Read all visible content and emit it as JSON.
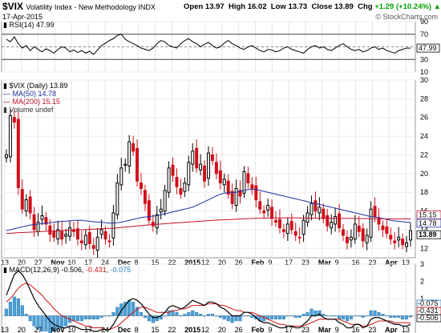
{
  "header": {
    "symbol": "$VIX",
    "description": "Volatility Index - New Methodology  INDX",
    "date": "17-Apr-2015",
    "open_label": "Open",
    "open": "13.97",
    "high_label": "High",
    "high": "16.02",
    "low_label": "Low",
    "low": "13.73",
    "close_label": "Close",
    "close": "13.89",
    "chg_label": "Chg",
    "chg": "+1.29 (+10.24%)",
    "chg_arrow": "▲",
    "brand": "© StockCharts.com"
  },
  "chart_data": [
    {
      "type": "line",
      "panel": "rsi",
      "legend": "RSI(14) 47.99",
      "last_value_label": "47.99",
      "ylim": [
        10,
        90
      ],
      "yticks": [
        10,
        30,
        50,
        70,
        90
      ],
      "guides": [
        30,
        70
      ],
      "series": [
        {
          "name": "RSI(14)",
          "values": [
            62,
            58,
            66,
            55,
            48,
            52,
            44,
            50,
            46,
            42,
            47,
            44,
            40,
            46,
            50,
            48,
            42,
            45,
            41,
            44,
            40,
            43,
            38,
            45,
            52,
            56,
            60,
            63,
            68,
            70,
            62,
            58,
            55,
            52,
            48,
            46,
            44,
            48,
            55,
            60,
            58,
            52,
            50,
            48,
            55,
            60,
            63,
            58,
            55,
            50,
            54,
            57,
            52,
            48,
            50,
            56,
            60,
            55,
            52,
            48,
            46,
            50,
            52,
            48,
            44,
            42,
            46,
            45,
            42,
            44,
            48,
            50,
            46,
            44,
            42,
            40,
            46,
            50,
            52,
            48,
            50,
            46,
            44,
            48,
            52,
            55,
            50,
            46,
            44,
            46,
            42,
            44,
            48,
            50,
            46,
            48,
            44,
            42,
            40,
            44,
            46,
            48,
            47.99
          ]
        }
      ]
    },
    {
      "type": "candlestick",
      "panel": "price",
      "legend_title": "$VIX (Daily) 13.89",
      "legend_ma50": "MA(50) 14.78",
      "legend_ma200": "MA(200) 15.15",
      "legend_volume": "Volume undef",
      "ylim": [
        11,
        30
      ],
      "yticks": [
        12,
        14,
        16,
        18,
        20,
        22,
        24,
        26,
        28,
        30
      ],
      "x_labels": [
        "13",
        "20",
        "27",
        "Nov",
        "10",
        "17",
        "24",
        "Dec",
        "8",
        "15",
        "22",
        "2015",
        "12",
        "20",
        "26",
        "Feb",
        "9",
        "17",
        "23",
        "Mar",
        "9",
        "16",
        "23",
        "Apr",
        "13"
      ],
      "x_labels_bold": [
        "Nov",
        "Dec",
        "2015",
        "Feb",
        "Mar",
        "Apr"
      ],
      "last_labels": [
        "15.15",
        "14.78",
        "13.89"
      ],
      "close": [
        22.0,
        26.2,
        25.5,
        18.5,
        16.2,
        17.2,
        15.8,
        14.0,
        14.8,
        15.5,
        14.6,
        13.5,
        13.2,
        14.0,
        13.0,
        13.5,
        14.2,
        13.8,
        13.0,
        12.6,
        13.4,
        12.5,
        12.0,
        13.2,
        14.0,
        13.0,
        12.8,
        15.8,
        19.0,
        20.6,
        21.0,
        23.4,
        22.4,
        19.2,
        18.4,
        16.8,
        15.0,
        14.4,
        15.6,
        16.2,
        18.2,
        20.6,
        19.8,
        18.6,
        17.8,
        19.0,
        21.2,
        22.4,
        20.6,
        21.0,
        19.2,
        22.2,
        21.4,
        20.0,
        19.0,
        19.4,
        17.8,
        16.8,
        18.4,
        17.6,
        20.2,
        19.0,
        18.4,
        17.2,
        16.2,
        15.8,
        16.6,
        15.2,
        14.8,
        14.2,
        13.8,
        14.6,
        14.0,
        13.4,
        13.2,
        15.0,
        15.8,
        16.8,
        16.0,
        16.4,
        15.2,
        14.4,
        14.8,
        15.4,
        14.2,
        13.4,
        12.6,
        13.2,
        14.6,
        13.8,
        12.8,
        13.4,
        16.2,
        15.4,
        14.6,
        14.0,
        13.6,
        13.0,
        12.6,
        13.2,
        12.4,
        12.6,
        13.89
      ],
      "series": [
        {
          "name": "MA(50)",
          "color": "#1f2fa0",
          "values": [
            13.9,
            14.0,
            14.1,
            14.2,
            14.3,
            14.4,
            14.5,
            14.55,
            14.6,
            14.65,
            14.7,
            14.75,
            14.8,
            14.85,
            14.9,
            14.9,
            14.95,
            15.0,
            15.0,
            15.0,
            14.95,
            14.9,
            14.85,
            14.8,
            14.8,
            14.75,
            14.7,
            14.7,
            14.75,
            14.8,
            14.9,
            15.0,
            15.1,
            15.2,
            15.3,
            15.35,
            15.4,
            15.45,
            15.5,
            15.6,
            15.7,
            15.8,
            15.9,
            16.0,
            16.1,
            16.2,
            16.3,
            16.4,
            16.6,
            16.8,
            17.0,
            17.2,
            17.4,
            17.6,
            17.8,
            17.9,
            18.0,
            18.0,
            18.0,
            18.1,
            18.2,
            18.3,
            18.3,
            18.3,
            18.2,
            18.1,
            18.0,
            17.9,
            17.8,
            17.7,
            17.6,
            17.5,
            17.4,
            17.3,
            17.2,
            17.1,
            17.0,
            16.9,
            16.8,
            16.7,
            16.6,
            16.5,
            16.4,
            16.3,
            16.2,
            16.1,
            16.0,
            15.9,
            15.8,
            15.7,
            15.6,
            15.5,
            15.4,
            15.35,
            15.3,
            15.2,
            15.1,
            15.0,
            14.95,
            14.9,
            14.85,
            14.8,
            14.78
          ]
        },
        {
          "name": "MA(200)",
          "color": "#c0102a",
          "values": [
            13.6,
            13.62,
            13.65,
            13.68,
            13.7,
            13.72,
            13.74,
            13.76,
            13.78,
            13.8,
            13.82,
            13.84,
            13.86,
            13.88,
            13.9,
            13.92,
            13.94,
            13.96,
            13.98,
            14.0,
            14.02,
            14.04,
            14.06,
            14.08,
            14.1,
            14.12,
            14.14,
            14.16,
            14.2,
            14.24,
            14.28,
            14.32,
            14.36,
            14.4,
            14.44,
            14.48,
            14.52,
            14.55,
            14.58,
            14.61,
            14.64,
            14.67,
            14.7,
            14.73,
            14.76,
            14.79,
            14.82,
            14.85,
            14.88,
            14.91,
            14.94,
            14.97,
            15.0,
            15.02,
            15.04,
            15.06,
            15.08,
            15.1,
            15.12,
            15.14,
            15.16,
            15.18,
            15.2,
            15.22,
            15.23,
            15.24,
            15.25,
            15.26,
            15.26,
            15.27,
            15.27,
            15.27,
            15.27,
            15.27,
            15.26,
            15.26,
            15.25,
            15.25,
            15.24,
            15.24,
            15.23,
            15.23,
            15.22,
            15.22,
            15.21,
            15.21,
            15.2,
            15.2,
            15.19,
            15.19,
            15.18,
            15.18,
            15.17,
            15.17,
            15.17,
            15.16,
            15.16,
            15.16,
            15.15,
            15.15,
            15.15,
            15.15,
            15.15
          ]
        }
      ]
    },
    {
      "type": "line",
      "panel": "macd",
      "legend_title": "MACD(12,26,9)",
      "legend_macd": "-0.506",
      "legend_signal": "-0.431",
      "legend_hist": "-0.075",
      "ylim": [
        -1,
        3
      ],
      "yticks": [
        -1,
        0,
        1,
        2,
        3
      ],
      "last_labels": [
        "-0.075",
        "-0.431",
        "-0.506"
      ],
      "x_labels": [
        "13",
        "20",
        "27",
        "Nov",
        "10",
        "17",
        "24",
        "Dec",
        "8",
        "15",
        "22",
        "2015",
        "12",
        "20",
        "26",
        "Feb",
        "9",
        "17",
        "23",
        "Mar",
        "9",
        "16",
        "23",
        "Apr",
        "13"
      ],
      "x_labels_bold": [
        "Nov",
        "Dec",
        "2015",
        "Feb",
        "Mar",
        "Apr"
      ],
      "series": [
        {
          "name": "MACD",
          "color": "#000000",
          "values": [
            1.2,
            1.8,
            2.4,
            2.6,
            2.4,
            2.0,
            1.5,
            1.0,
            0.6,
            0.3,
            0.0,
            -0.3,
            -0.5,
            -0.6,
            -0.7,
            -0.7,
            -0.6,
            -0.6,
            -0.7,
            -0.8,
            -0.8,
            -0.8,
            -0.9,
            -0.9,
            -0.8,
            -0.8,
            -0.8,
            -0.5,
            -0.1,
            0.3,
            0.6,
            0.9,
            1.0,
            0.9,
            0.7,
            0.4,
            0.1,
            -0.1,
            -0.1,
            0.0,
            0.2,
            0.5,
            0.6,
            0.5,
            0.4,
            0.5,
            0.7,
            0.9,
            0.8,
            0.7,
            0.6,
            0.8,
            0.8,
            0.7,
            0.5,
            0.4,
            0.2,
            0.0,
            0.0,
            0.0,
            0.2,
            0.2,
            0.1,
            -0.1,
            -0.3,
            -0.4,
            -0.4,
            -0.5,
            -0.6,
            -0.7,
            -0.7,
            -0.6,
            -0.6,
            -0.7,
            -0.7,
            -0.5,
            -0.3,
            0.0,
            0.0,
            0.1,
            -0.1,
            -0.2,
            -0.2,
            -0.2,
            -0.4,
            -0.5,
            -0.7,
            -0.7,
            -0.5,
            -0.5,
            -0.7,
            -0.6,
            -0.2,
            -0.1,
            -0.1,
            -0.2,
            -0.3,
            -0.4,
            -0.5,
            -0.5,
            -0.6,
            -0.6,
            -0.506
          ]
        },
        {
          "name": "Signal",
          "color": "#d01010",
          "values": [
            0.8,
            1.0,
            1.3,
            1.6,
            1.8,
            1.9,
            1.8,
            1.6,
            1.4,
            1.2,
            0.9,
            0.7,
            0.4,
            0.2,
            0.0,
            -0.1,
            -0.2,
            -0.3,
            -0.4,
            -0.5,
            -0.6,
            -0.6,
            -0.7,
            -0.7,
            -0.7,
            -0.8,
            -0.8,
            -0.7,
            -0.6,
            -0.4,
            -0.2,
            0.0,
            0.2,
            0.4,
            0.5,
            0.5,
            0.4,
            0.3,
            0.2,
            0.2,
            0.2,
            0.2,
            0.3,
            0.3,
            0.4,
            0.4,
            0.5,
            0.6,
            0.6,
            0.6,
            0.6,
            0.7,
            0.7,
            0.7,
            0.6,
            0.6,
            0.5,
            0.4,
            0.3,
            0.3,
            0.2,
            0.2,
            0.2,
            0.1,
            0.0,
            -0.1,
            -0.2,
            -0.3,
            -0.4,
            -0.5,
            -0.5,
            -0.6,
            -0.6,
            -0.6,
            -0.6,
            -0.6,
            -0.5,
            -0.4,
            -0.3,
            -0.2,
            -0.2,
            -0.2,
            -0.2,
            -0.2,
            -0.2,
            -0.3,
            -0.4,
            -0.5,
            -0.5,
            -0.5,
            -0.6,
            -0.6,
            -0.5,
            -0.4,
            -0.3,
            -0.3,
            -0.3,
            -0.3,
            -0.4,
            -0.4,
            -0.4,
            -0.4,
            -0.431
          ]
        }
      ]
    }
  ]
}
